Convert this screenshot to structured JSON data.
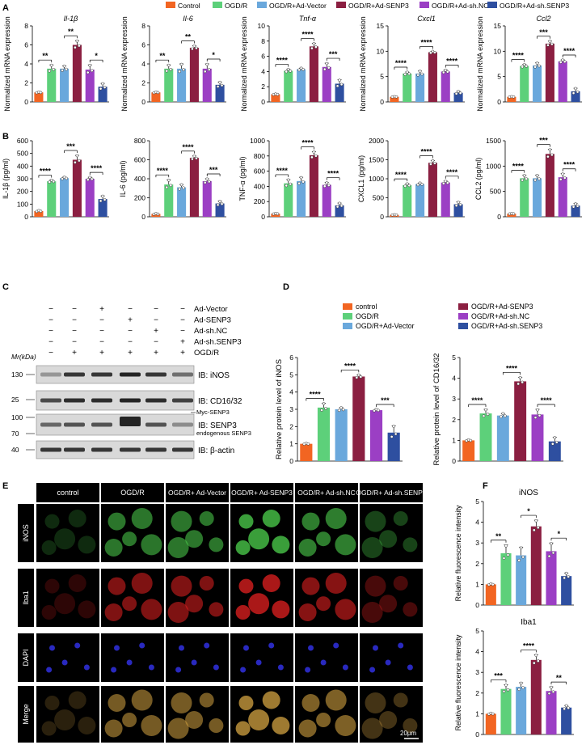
{
  "colors": {
    "control": "#f26522",
    "ogdr": "#5dd07a",
    "vector": "#6aa8dc",
    "senp3": "#8b1f41",
    "shnc": "#9b3fc4",
    "shsenp3": "#2e4fa0"
  },
  "panel_letters": [
    "A",
    "B",
    "C",
    "D",
    "E",
    "F"
  ],
  "legend_A": [
    "Control",
    "OGD/R",
    "OGD/R+Ad-Vector",
    "OGD/R+Ad-SENP3",
    "OGD/R+Ad-sh.NC",
    "OGD/R+Ad-sh.SENP3"
  ],
  "legend_D": [
    "control",
    "OGD/R",
    "OGD/R+Ad-Vector",
    "OGD/R+Ad-SENP3",
    "OGD/R+Ad-sh.NC",
    "OGD/R+Ad-sh.SENP3"
  ],
  "chart_data": [
    {
      "type": "bar",
      "title": "Il-1β",
      "ylabel": "Normalized mRNA expression",
      "ylim": [
        0,
        8
      ],
      "yticks": [
        0,
        2,
        4,
        6,
        8
      ],
      "values": [
        1.0,
        3.5,
        3.5,
        6.0,
        3.4,
        1.6
      ],
      "errors": [
        0.05,
        0.4,
        0.3,
        0.45,
        0.5,
        0.35
      ],
      "sig": [
        "**",
        "**",
        "*"
      ]
    },
    {
      "type": "bar",
      "title": "Il-6",
      "ylabel": "Normalized mRNA expression",
      "ylim": [
        0,
        8
      ],
      "yticks": [
        0,
        2,
        4,
        6,
        8
      ],
      "values": [
        1.0,
        3.5,
        3.5,
        5.7,
        3.5,
        1.8
      ],
      "errors": [
        0.05,
        0.4,
        0.5,
        0.2,
        0.5,
        0.3
      ],
      "sig": [
        "**",
        "**",
        "*"
      ]
    },
    {
      "type": "bar",
      "title": "Tnf-α",
      "ylabel": "Normalized mRNA expression",
      "ylim": [
        0,
        10
      ],
      "yticks": [
        0,
        2,
        4,
        6,
        8,
        10
      ],
      "values": [
        1.0,
        4.1,
        4.3,
        7.3,
        4.6,
        2.4
      ],
      "errors": [
        0.05,
        0.2,
        0.15,
        0.4,
        0.5,
        0.5
      ],
      "sig": [
        "****",
        "****",
        "***"
      ]
    },
    {
      "type": "bar",
      "title": "Cxcl1",
      "ylabel": "Normalized mRNA expression",
      "ylim": [
        0,
        15
      ],
      "yticks": [
        0,
        5,
        10,
        15
      ],
      "values": [
        1.0,
        5.6,
        5.6,
        9.8,
        6.0,
        1.8
      ],
      "errors": [
        0.05,
        0.3,
        0.5,
        0.2,
        0.3,
        0.3
      ],
      "sig": [
        "****",
        "****",
        "****"
      ]
    },
    {
      "type": "bar",
      "title": "Ccl2",
      "ylabel": "Normalized mRNA expression",
      "ylim": [
        0,
        15
      ],
      "yticks": [
        0,
        5,
        10,
        15
      ],
      "values": [
        1.0,
        7.1,
        7.2,
        11.5,
        8.0,
        2.1
      ],
      "errors": [
        0.05,
        0.3,
        0.5,
        0.5,
        0.3,
        0.6
      ],
      "sig": [
        "****",
        "***",
        "****"
      ]
    },
    {
      "type": "bar",
      "title": "",
      "ylabel": "IL-1β (pg/ml)",
      "ylim": [
        0,
        600
      ],
      "yticks": [
        0,
        100,
        200,
        300,
        400,
        500,
        600
      ],
      "values": [
        45,
        280,
        305,
        450,
        300,
        140
      ],
      "errors": [
        5,
        10,
        8,
        35,
        12,
        25
      ],
      "sig": [
        "****",
        "***",
        "****"
      ]
    },
    {
      "type": "bar",
      "title": "",
      "ylabel": "IL-6 (pg/ml)",
      "ylim": [
        0,
        800
      ],
      "yticks": [
        0,
        200,
        400,
        600,
        800
      ],
      "values": [
        30,
        340,
        310,
        620,
        375,
        140
      ],
      "errors": [
        5,
        50,
        30,
        20,
        25,
        25
      ],
      "sig": [
        "****",
        "****",
        "***"
      ]
    },
    {
      "type": "bar",
      "title": "",
      "ylabel": "TNF-α (pg/ml)",
      "ylim": [
        0,
        1000
      ],
      "yticks": [
        0,
        200,
        400,
        600,
        800,
        1000
      ],
      "values": [
        40,
        440,
        470,
        810,
        420,
        150
      ],
      "errors": [
        5,
        50,
        50,
        45,
        30,
        30
      ],
      "sig": [
        "****",
        "****",
        "****"
      ]
    },
    {
      "type": "bar",
      "title": "",
      "ylabel": "CXCL1 (pg/ml)",
      "ylim": [
        0,
        2000
      ],
      "yticks": [
        0,
        500,
        1000,
        1500,
        2000
      ],
      "values": [
        50,
        830,
        860,
        1420,
        900,
        330
      ],
      "errors": [
        5,
        40,
        30,
        60,
        40,
        60
      ],
      "sig": [
        "****",
        "****",
        "****"
      ]
    },
    {
      "type": "bar",
      "title": "",
      "ylabel": "CCL2 (pg/ml)",
      "ylim": [
        0,
        1500
      ],
      "yticks": [
        0,
        500,
        1000,
        1500
      ],
      "values": [
        60,
        760,
        760,
        1240,
        780,
        220
      ],
      "errors": [
        5,
        60,
        60,
        90,
        70,
        40
      ],
      "sig": [
        "****",
        "***",
        "****"
      ]
    },
    {
      "type": "bar",
      "title": "",
      "ylabel": "Relative protein level of iNOS",
      "ylim": [
        0,
        6
      ],
      "yticks": [
        0,
        1,
        2,
        3,
        4,
        5,
        6
      ],
      "values": [
        1.0,
        3.1,
        3.0,
        4.9,
        2.95,
        1.65
      ],
      "errors": [
        0.03,
        0.25,
        0.1,
        0.1,
        0.05,
        0.4
      ],
      "sig": [
        "****",
        "****",
        "***"
      ]
    },
    {
      "type": "bar",
      "title": "",
      "ylabel": "Relative protein level of CD16/32",
      "ylim": [
        0,
        5
      ],
      "yticks": [
        0,
        1,
        2,
        3,
        4,
        5
      ],
      "values": [
        1.0,
        2.3,
        2.2,
        3.85,
        2.25,
        0.95
      ],
      "errors": [
        0.03,
        0.2,
        0.1,
        0.2,
        0.25,
        0.2
      ],
      "sig": [
        "****",
        "****",
        "****"
      ]
    },
    {
      "type": "bar",
      "title": "iNOS",
      "ylabel": "Relative fluorescence intensity",
      "ylim": [
        0,
        5
      ],
      "yticks": [
        0,
        1,
        2,
        3,
        4,
        5
      ],
      "values": [
        1.0,
        2.5,
        2.4,
        3.8,
        2.6,
        1.4
      ],
      "errors": [
        0.03,
        0.4,
        0.4,
        0.3,
        0.4,
        0.15
      ],
      "sig": [
        "**",
        "*",
        "*"
      ]
    },
    {
      "type": "bar",
      "title": "Iba1",
      "ylabel": "Relative fluorescence intensity",
      "ylim": [
        0,
        5
      ],
      "yticks": [
        0,
        1,
        2,
        3,
        4,
        5
      ],
      "values": [
        1.0,
        2.2,
        2.3,
        3.6,
        2.1,
        1.3
      ],
      "errors": [
        0.03,
        0.2,
        0.2,
        0.25,
        0.2,
        0.1
      ],
      "sig": [
        "***",
        "****",
        "**"
      ]
    }
  ],
  "blot": {
    "treatments": [
      {
        "label": "Ad-Vector",
        "marks": [
          "−",
          "−",
          "+",
          "−",
          "−",
          "−"
        ]
      },
      {
        "label": "Ad-SENP3",
        "marks": [
          "−",
          "−",
          "−",
          "+",
          "−",
          "−"
        ]
      },
      {
        "label": "Ad-sh.NC",
        "marks": [
          "−",
          "−",
          "−",
          "−",
          "+",
          "−"
        ]
      },
      {
        "label": "Ad-sh.SENP3",
        "marks": [
          "−",
          "−",
          "−",
          "−",
          "−",
          "+"
        ]
      },
      {
        "label": "OGD/R",
        "marks": [
          "−",
          "+",
          "+",
          "+",
          "+",
          "+"
        ]
      }
    ],
    "mr_label": "Mr(kDa)",
    "markers": [
      "130",
      "25",
      "100",
      "70",
      "40"
    ],
    "bands": [
      "IB: iNOS",
      "IB: CD16/32",
      "IB: SENP3",
      "IB: β-actin"
    ],
    "myc_label": "Myc-SENP3",
    "endo_label": "endogenous SENP3"
  },
  "micro": {
    "cols": [
      "control",
      "OGD/R",
      "OGD/R+ Ad-Vector",
      "OGD/R+ Ad-SENP3",
      "OGD/R+ Ad-sh.NC",
      "OGD/R+ Ad-sh.SENP3"
    ],
    "rows": [
      "iNOS",
      "Iba1",
      "DAPI",
      "Merge"
    ],
    "scale": "20μm"
  }
}
